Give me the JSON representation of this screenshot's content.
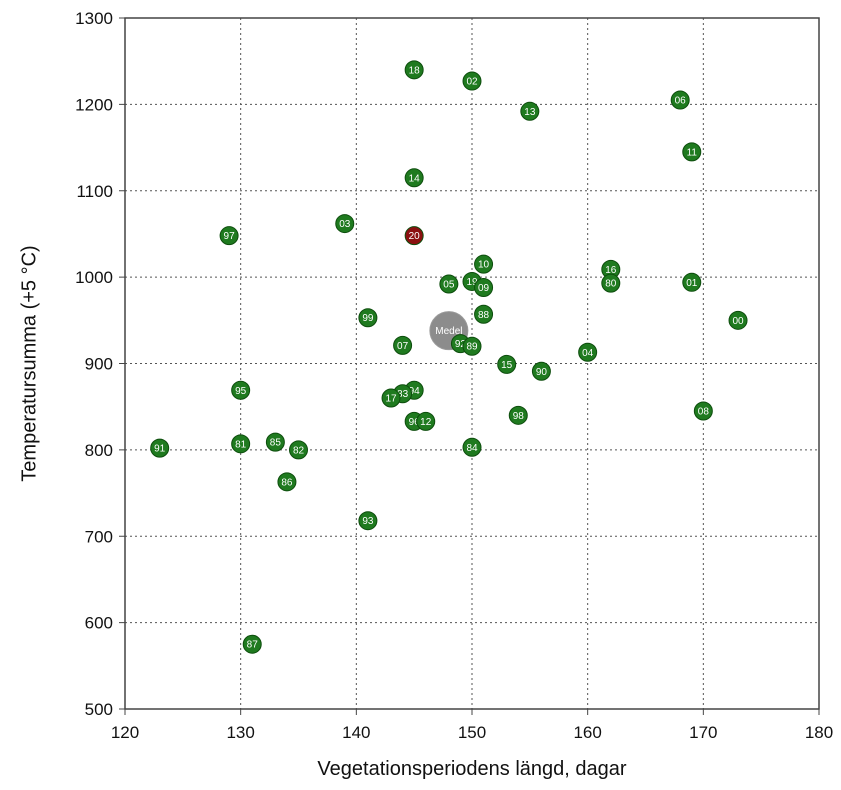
{
  "chart_data": {
    "type": "scatter",
    "title": "",
    "xlabel": "Vegetationsperiodens längd, dagar",
    "ylabel": "Temperatursumma (+5 °C)",
    "xlim": [
      120,
      180
    ],
    "ylim": [
      500,
      1300
    ],
    "x_ticks": [
      "120",
      "130",
      "140",
      "150",
      "160",
      "170",
      "180"
    ],
    "y_ticks": [
      "500",
      "600",
      "700",
      "800",
      "900",
      "1000",
      "1100",
      "1200",
      "1300"
    ],
    "grid": true,
    "colors": {
      "normal": "#1f7a1f",
      "highlight": "#8b1010",
      "mean": "#8c8c8c"
    },
    "points": [
      {
        "label": "18",
        "x": 145,
        "y": 1240,
        "kind": "normal"
      },
      {
        "label": "02",
        "x": 150,
        "y": 1227,
        "kind": "normal"
      },
      {
        "label": "13",
        "x": 155,
        "y": 1192,
        "kind": "normal"
      },
      {
        "label": "06",
        "x": 168,
        "y": 1205,
        "kind": "normal"
      },
      {
        "label": "11",
        "x": 169,
        "y": 1145,
        "kind": "normal"
      },
      {
        "label": "14",
        "x": 145,
        "y": 1115,
        "kind": "normal"
      },
      {
        "label": "03",
        "x": 139,
        "y": 1062,
        "kind": "normal"
      },
      {
        "label": "97",
        "x": 129,
        "y": 1048,
        "kind": "normal"
      },
      {
        "label": "20",
        "x": 145,
        "y": 1048,
        "kind": "highlight"
      },
      {
        "label": "10",
        "x": 151,
        "y": 1015,
        "kind": "normal"
      },
      {
        "label": "16",
        "x": 162,
        "y": 1009,
        "kind": "normal"
      },
      {
        "label": "80",
        "x": 162,
        "y": 993,
        "kind": "normal"
      },
      {
        "label": "01",
        "x": 169,
        "y": 994,
        "kind": "normal"
      },
      {
        "label": "05",
        "x": 148,
        "y": 992,
        "kind": "normal"
      },
      {
        "label": "19",
        "x": 150,
        "y": 995,
        "kind": "normal"
      },
      {
        "label": "09",
        "x": 151,
        "y": 988,
        "kind": "normal"
      },
      {
        "label": "99",
        "x": 141,
        "y": 953,
        "kind": "normal"
      },
      {
        "label": "88",
        "x": 151,
        "y": 957,
        "kind": "normal"
      },
      {
        "label": "00",
        "x": 173,
        "y": 950,
        "kind": "normal"
      },
      {
        "label": "Medel",
        "x": 148,
        "y": 938,
        "kind": "mean"
      },
      {
        "label": "07",
        "x": 144,
        "y": 921,
        "kind": "normal"
      },
      {
        "label": "92",
        "x": 149,
        "y": 923,
        "kind": "normal"
      },
      {
        "label": "89",
        "x": 150,
        "y": 920,
        "kind": "normal"
      },
      {
        "label": "04",
        "x": 160,
        "y": 913,
        "kind": "normal"
      },
      {
        "label": "15",
        "x": 153,
        "y": 899,
        "kind": "normal"
      },
      {
        "label": "90",
        "x": 156,
        "y": 891,
        "kind": "normal"
      },
      {
        "label": "95",
        "x": 130,
        "y": 869,
        "kind": "normal"
      },
      {
        "label": "94",
        "x": 145,
        "y": 869,
        "kind": "normal"
      },
      {
        "label": "83",
        "x": 144,
        "y": 865,
        "kind": "normal"
      },
      {
        "label": "17",
        "x": 143,
        "y": 860,
        "kind": "normal"
      },
      {
        "label": "98",
        "x": 154,
        "y": 840,
        "kind": "normal"
      },
      {
        "label": "08",
        "x": 170,
        "y": 845,
        "kind": "normal"
      },
      {
        "label": "96",
        "x": 145,
        "y": 833,
        "kind": "normal"
      },
      {
        "label": "12",
        "x": 146,
        "y": 833,
        "kind": "normal"
      },
      {
        "label": "81",
        "x": 130,
        "y": 807,
        "kind": "normal"
      },
      {
        "label": "85",
        "x": 133,
        "y": 809,
        "kind": "normal"
      },
      {
        "label": "82",
        "x": 135,
        "y": 800,
        "kind": "normal"
      },
      {
        "label": "91",
        "x": 123,
        "y": 802,
        "kind": "normal"
      },
      {
        "label": "84",
        "x": 150,
        "y": 803,
        "kind": "normal"
      },
      {
        "label": "86",
        "x": 134,
        "y": 763,
        "kind": "normal"
      },
      {
        "label": "93",
        "x": 141,
        "y": 718,
        "kind": "normal"
      },
      {
        "label": "87",
        "x": 131,
        "y": 575,
        "kind": "normal"
      }
    ]
  }
}
